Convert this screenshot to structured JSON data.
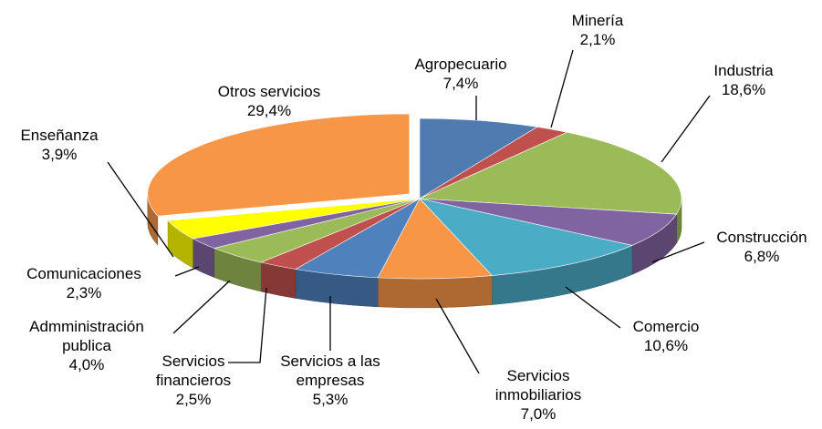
{
  "chart_data": {
    "type": "pie",
    "categories": [
      "Agropecuario",
      "Minería",
      "Industria",
      "Construcción",
      "Comercio",
      "Servicios inmobiliarios",
      "Servicios a las empresas",
      "Servicios financieros",
      "Admministración publica",
      "Comunicaciones",
      "Enseñanza",
      "Otros servicios"
    ],
    "values": [
      7.4,
      2.1,
      18.6,
      6.8,
      10.6,
      7.0,
      5.3,
      2.5,
      4.0,
      2.3,
      3.9,
      29.4
    ],
    "value_labels": [
      "7,4%",
      "2,1%",
      "18,6%",
      "6,8%",
      "10,6%",
      "7,0%",
      "5,3%",
      "2,5%",
      "4,0%",
      "2,3%",
      "3,9%",
      "29,4%"
    ],
    "colors": [
      "#4f7bb0",
      "#c0504d",
      "#9bbb59",
      "#8064a2",
      "#4bacc6",
      "#f79646",
      "#4f81bd",
      "#c0504d",
      "#9bbb59",
      "#8064a2",
      "#ffff00",
      "#f79646"
    ]
  }
}
